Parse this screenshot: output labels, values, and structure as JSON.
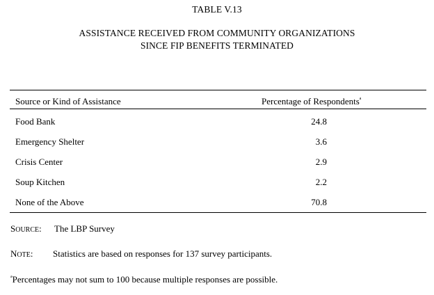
{
  "table_number": "TABLE V.13",
  "title_line1": "ASSISTANCE RECEIVED FROM COMMUNITY ORGANIZATIONS",
  "title_line2": "SINCE FIP BENEFITS TERMINATED",
  "header": {
    "col1": "Source or Kind of Assistance",
    "col2": "Percentage of Respondents",
    "col2_footnote_mark": "a"
  },
  "rows": [
    {
      "label": "Food Bank",
      "value": "24.8"
    },
    {
      "label": "Emergency Shelter",
      "value": "3.6"
    },
    {
      "label": "Crisis Center",
      "value": "2.9"
    },
    {
      "label": "Soup Kitchen",
      "value": "2.2"
    },
    {
      "label": "None of the Above",
      "value": "70.8"
    }
  ],
  "source": {
    "key_first": "S",
    "key_rest": "OURCE",
    "key_colon": ":",
    "text": "The LBP Survey"
  },
  "note": {
    "key_first": "N",
    "key_rest": "OTE",
    "key_colon": ":",
    "text": "Statistics are based on responses for 137 survey participants."
  },
  "footnote": {
    "mark": "a",
    "text": "Percentages may not sum to 100 because multiple responses are possible."
  }
}
